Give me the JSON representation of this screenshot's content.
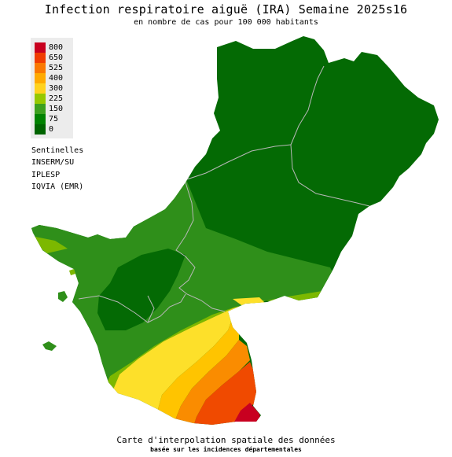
{
  "title": "Infection respiratoire aiguë (IRA) Semaine 2025s16",
  "subtitle": "en nombre de cas pour 100 000 habitants",
  "legend": {
    "items": [
      {
        "label": "800",
        "color": "#c8001e"
      },
      {
        "label": "650",
        "color": "#f03c00"
      },
      {
        "label": "525",
        "color": "#fa7800"
      },
      {
        "label": "400",
        "color": "#ffaa00"
      },
      {
        "label": "300",
        "color": "#ffd21e"
      },
      {
        "label": "225",
        "color": "#96c800"
      },
      {
        "label": "150",
        "color": "#3ca01e"
      },
      {
        "label": "75",
        "color": "#008200"
      },
      {
        "label": "0",
        "color": "#006400"
      }
    ]
  },
  "sources": [
    "Sentinelles",
    "INSERM/SU",
    "IPLESP",
    "IQVIA (EMR)"
  ],
  "footer": {
    "line1": "Carte d'interpolation spatiale des données",
    "line2": "basée sur les incidences départementales"
  },
  "colors": {
    "dark_green": "#046a04",
    "mid_green": "#2f8f1a",
    "light_green": "#7cb800",
    "yellow": "#fde02a",
    "gold": "#ffc400",
    "orange": "#fa8c00",
    "red_orange": "#f04a00",
    "red": "#c80020",
    "border": "#b8b8b8"
  }
}
